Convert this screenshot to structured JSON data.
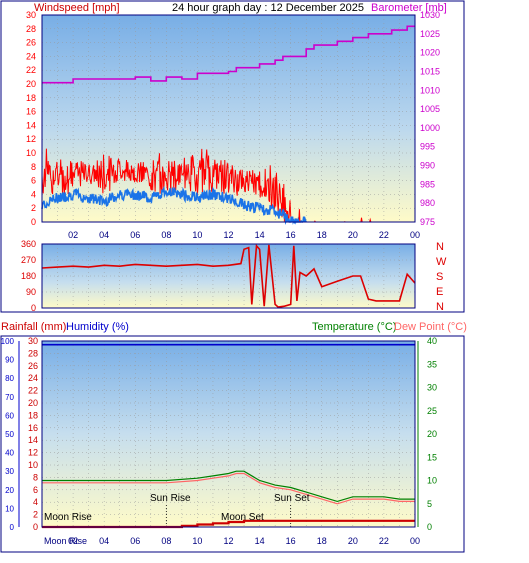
{
  "header": {
    "title": "24 hour graph day : 12 December 2025",
    "left_label": "Windspeed [mph]",
    "right_label": "Barometer [mb]"
  },
  "colors": {
    "wind": "#ff0000",
    "gust_shade": "#1a73e8",
    "barometer": "#cc00cc",
    "direction": "#dd0000",
    "rain": "#cc0000",
    "humidity": "#0000cc",
    "temperature": "#008000",
    "dew_point": "#ff6666",
    "frame": "#000080",
    "sky_top": "#78aee6",
    "sky_bottom": "#fffbc8"
  },
  "chart_data": [
    {
      "type": "line",
      "title": "24 hour graph day : 12 December 2025",
      "xlabel": "",
      "x_ticks": [
        "02",
        "04",
        "06",
        "08",
        "10",
        "12",
        "14",
        "16",
        "18",
        "20",
        "22",
        "00"
      ],
      "x_range_hours": [
        0,
        24
      ],
      "grid": true,
      "left_axis": {
        "label": "Windspeed [mph]",
        "ticks": [
          0,
          2,
          4,
          6,
          8,
          10,
          12,
          14,
          16,
          18,
          20,
          22,
          24,
          26,
          28,
          30
        ],
        "range": [
          0,
          30
        ]
      },
      "right_axis": {
        "label": "Barometer [mb]",
        "ticks": [
          975,
          980,
          985,
          990,
          995,
          1000,
          1005,
          1010,
          1015,
          1020,
          1025,
          1030
        ],
        "range": [
          975,
          1030
        ]
      },
      "series": [
        {
          "name": "",
          "axis": "left",
          "style": "wind-average",
          "x_hours": [
            0,
            1,
            2,
            3,
            4,
            5,
            6,
            7,
            8,
            9,
            10,
            11,
            12,
            13,
            14,
            15,
            15.5,
            16,
            16.5,
            17,
            18,
            19,
            20,
            21,
            22,
            23,
            24
          ],
          "values": [
            6.5,
            6,
            6.5,
            7,
            6.5,
            7.5,
            7,
            6.5,
            6,
            7,
            6.5,
            7,
            6,
            5.5,
            5.5,
            4,
            3,
            1,
            0.5,
            0.5,
            0.5,
            0.5,
            0.5,
            0.5,
            0.5,
            0.5,
            0.5
          ],
          "gusts": [
            11,
            10,
            10,
            9,
            11,
            10,
            9,
            10,
            10,
            10,
            11,
            11,
            10,
            8,
            9,
            8,
            7,
            5,
            3,
            2,
            0,
            0,
            3,
            1,
            0,
            0,
            0
          ]
        },
        {
          "name": "",
          "axis": "left",
          "style": "wind-lull",
          "x_hours": [
            0,
            1,
            2,
            3,
            4,
            5,
            6,
            7,
            8,
            9,
            10,
            11,
            12,
            13,
            14,
            15,
            15.5,
            16,
            16.5,
            17
          ],
          "values": [
            2.5,
            3.5,
            4,
            3.5,
            3,
            4,
            4,
            3.5,
            4.5,
            4,
            3.5,
            4,
            3.5,
            2.5,
            2,
            1.5,
            1,
            0,
            0,
            0
          ]
        },
        {
          "name": "",
          "axis": "right",
          "style": "barometer",
          "x_hours": [
            0,
            2,
            4,
            6,
            7,
            8,
            9,
            10,
            12,
            12.5,
            13,
            14,
            15,
            15.5,
            16,
            17,
            17.5,
            18,
            19,
            20,
            20.5,
            21,
            21.5,
            22,
            22.5,
            23,
            23.5,
            24
          ],
          "values": [
            1012,
            1013,
            1013,
            1013.5,
            1012.5,
            1013.5,
            1013,
            1014.5,
            1015,
            1016,
            1016,
            1017,
            1018,
            1019,
            1019,
            1021,
            1022,
            1022,
            1023,
            1024,
            1024,
            1025,
            1025,
            1025,
            1026,
            1026,
            1027,
            1027
          ]
        }
      ]
    },
    {
      "type": "line",
      "title": "",
      "left_axis": {
        "ticks": [
          0,
          90,
          180,
          270,
          360
        ],
        "range": [
          0,
          360
        ]
      },
      "right_axis": {
        "ticks": [
          "N",
          "W",
          "S",
          "E",
          "N"
        ]
      },
      "x_range_hours": [
        0,
        24
      ],
      "series": [
        {
          "name": "",
          "style": "wind-direction",
          "x_hours": [
            0,
            1,
            2,
            3,
            4,
            5,
            6,
            7,
            8,
            9,
            10,
            11,
            12,
            12.8,
            13,
            13.3,
            13.5,
            13.8,
            14,
            14.3,
            14.6,
            15,
            15.2,
            15.6,
            16,
            16.2,
            16.4,
            16.6,
            17,
            17.5,
            18,
            19,
            20,
            20.5,
            21,
            21.5,
            22,
            22.5,
            23,
            23.5,
            24
          ],
          "values": [
            225,
            230,
            235,
            230,
            240,
            235,
            245,
            240,
            235,
            240,
            245,
            235,
            240,
            250,
            330,
            340,
            20,
            350,
            330,
            10,
            355,
            20,
            5,
            10,
            20,
            350,
            40,
            200,
            180,
            220,
            120,
            150,
            180,
            180,
            50,
            40,
            40,
            40,
            40,
            190,
            140
          ]
        }
      ]
    },
    {
      "type": "line",
      "title": "",
      "x_ticks": [
        "02",
        "04",
        "06",
        "08",
        "10",
        "12",
        "14",
        "16",
        "18",
        "20",
        "22",
        "00"
      ],
      "x_range_hours": [
        0,
        24
      ],
      "left_axis_rain": {
        "label": "Rainfall (mm)",
        "ticks": [
          0,
          2,
          4,
          6,
          8,
          10,
          12,
          14,
          16,
          18,
          20,
          22,
          24,
          26,
          28,
          30
        ],
        "range": [
          0,
          30
        ]
      },
      "left_axis_humidity": {
        "label": "Humidity (%)",
        "ticks": [
          0,
          10,
          20,
          30,
          40,
          50,
          60,
          70,
          80,
          90,
          100
        ],
        "range": [
          0,
          100
        ]
      },
      "right_axis": {
        "label": "Temperature (°C)",
        "label_2": "Dew Point (°C)",
        "ticks": [
          0,
          5,
          10,
          15,
          20,
          25,
          30,
          35,
          40
        ],
        "range": [
          0,
          40
        ]
      },
      "annotations": {
        "sun_rise": "Sun Rise",
        "sun_set": "Sun Set",
        "moon_rise": "Moon Rise",
        "moon_set": "Moon Set"
      },
      "sun_rise_hour": 8.0,
      "sun_set_hour": 16.0,
      "series": [
        {
          "name": "Humidity (%)",
          "axis": "humidity",
          "x_hours": [
            0,
            24
          ],
          "values": [
            98,
            98
          ]
        },
        {
          "name": "Temperature (°C)",
          "axis": "temperature",
          "x_hours": [
            0,
            2,
            4,
            6,
            8,
            10,
            11,
            12,
            12.5,
            13,
            14,
            15,
            16,
            17,
            18,
            19,
            20,
            21,
            22,
            23,
            24
          ],
          "values": [
            10,
            10,
            10,
            10,
            10,
            10.5,
            11,
            11.5,
            12,
            12,
            10,
            9,
            8.5,
            7.5,
            6.5,
            5.5,
            6.5,
            6.5,
            6.5,
            6,
            6
          ]
        },
        {
          "name": "Dew Point (°C)",
          "axis": "temperature",
          "x_hours": [
            0,
            2,
            4,
            6,
            8,
            10,
            11,
            12,
            12.5,
            13,
            14,
            15,
            16,
            17,
            18,
            19,
            20,
            21,
            22,
            23,
            24
          ],
          "values": [
            9.5,
            9.5,
            9.5,
            9.5,
            9.5,
            10,
            10.5,
            11,
            11.5,
            11.5,
            9.5,
            8.5,
            8,
            7,
            6,
            5,
            6,
            6,
            6,
            5.5,
            5.5
          ]
        },
        {
          "name": "Rainfall (mm)",
          "axis": "rain",
          "x_hours": [
            0,
            2,
            4,
            6,
            8,
            9,
            10,
            11,
            12,
            13,
            14,
            16,
            18,
            20,
            22,
            24
          ],
          "values": [
            0,
            0,
            0,
            0,
            0,
            0.2,
            0.4,
            0.6,
            0.8,
            1.0,
            1.0,
            1.0,
            1.0,
            1.0,
            1.0,
            1.0
          ]
        }
      ]
    }
  ]
}
